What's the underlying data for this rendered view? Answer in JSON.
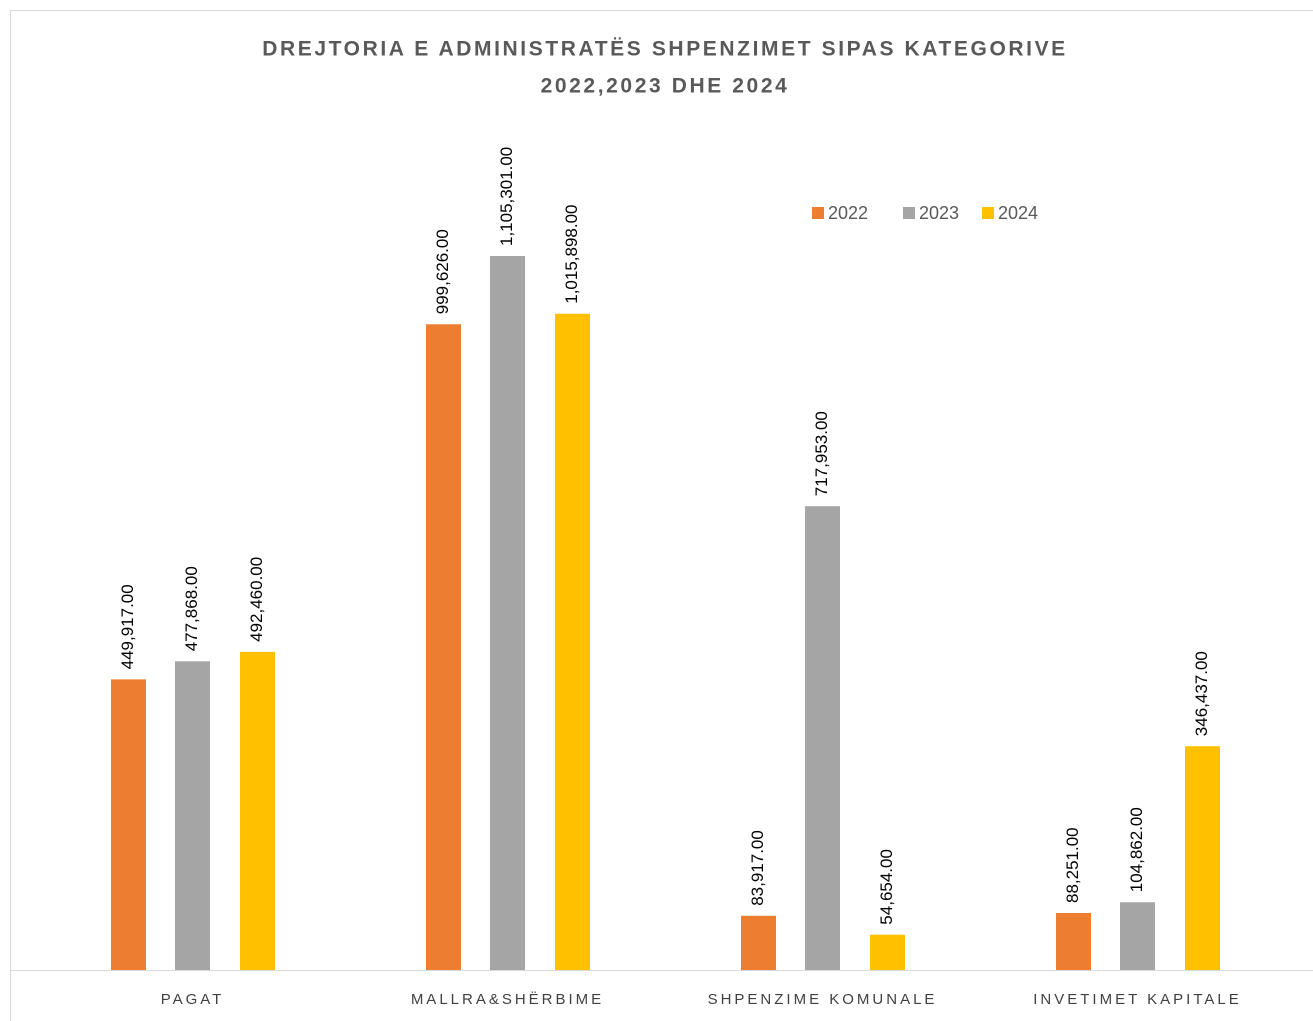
{
  "chart_data": {
    "type": "bar",
    "title": [
      "DREJTORIA E ADMINISTRATËS SHPENZIMET SIPAS KATEGORIVE",
      "2022,2023 DHE 2024"
    ],
    "categories": [
      "PAGAT",
      "MALLRA&SHËRBIME",
      "SHPENZIME KOMUNALE",
      "INVETIMET KAPITALE"
    ],
    "series": [
      {
        "name": "2022",
        "color": "#ED7D31",
        "values": [
          449917,
          999626,
          83917,
          88251
        ],
        "value_labels": [
          "449,917.00",
          "999,626.00",
          "83,917.00",
          "88,251.00"
        ]
      },
      {
        "name": "2023",
        "color": "#A5A5A5",
        "values": [
          477868,
          1105301,
          717953,
          104862
        ],
        "value_labels": [
          "477,868.00",
          "1,105,301.00",
          "717,953.00",
          "104,862.00"
        ]
      },
      {
        "name": "2024",
        "color": "#FFC000",
        "values": [
          492460,
          1015898,
          54654,
          346437
        ],
        "value_labels": [
          "492,460.00",
          "1,015,898.00",
          "54,654.00",
          "346,437.00"
        ]
      }
    ],
    "legend": "top-right"
  }
}
